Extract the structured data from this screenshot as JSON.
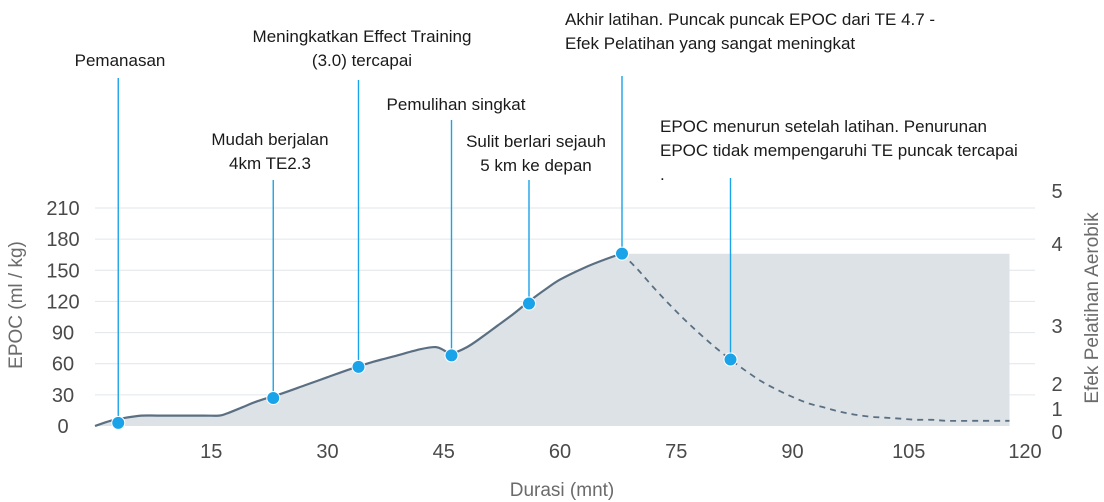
{
  "chart_data": {
    "type": "area",
    "xlabel": "Durasi (mnt)",
    "ylabel": "EPOC (ml / kg)",
    "y2label": "Efek Pelatihan Aerobik",
    "x_ticks": [
      15,
      30,
      45,
      60,
      75,
      90,
      105,
      120
    ],
    "y_ticks": [
      0,
      30,
      60,
      90,
      120,
      150,
      180,
      210
    ],
    "y2_ticks": [
      "0",
      "1",
      "2",
      "3",
      "4",
      "5"
    ],
    "xlim": [
      0,
      120
    ],
    "ylim": [
      0,
      210
    ],
    "colors": {
      "line": "#5b6f82",
      "fill": "#dde2e7",
      "marker": "#1aa3e8",
      "guide": "#1aa3e8"
    },
    "series": [
      {
        "style": "solid",
        "x": [
          0,
          2,
          4,
          6,
          8,
          10,
          14,
          16,
          17,
          19,
          21,
          24,
          27,
          30,
          33,
          36,
          39,
          42,
          44,
          45,
          46,
          48,
          50,
          52,
          54,
          56,
          58,
          60,
          63,
          66,
          68
        ],
        "y": [
          0,
          5,
          8,
          10,
          10,
          10,
          10,
          10,
          12,
          18,
          24,
          31,
          39,
          47,
          55,
          62,
          68,
          74,
          76,
          73,
          70,
          76,
          86,
          97,
          108,
          120,
          131,
          141,
          152,
          161,
          166
        ]
      },
      {
        "style": "dashed",
        "x": [
          68,
          70,
          72,
          74,
          76,
          78,
          80,
          82,
          84,
          86,
          88,
          90,
          92,
          94,
          96,
          98,
          100,
          102,
          104,
          106,
          108,
          110,
          114,
          118
        ],
        "y": [
          166,
          151,
          134,
          118,
          103,
          89,
          76,
          64,
          53,
          43,
          35,
          28,
          22,
          18,
          14,
          11,
          9,
          8,
          7,
          6,
          6,
          5,
          5,
          5
        ]
      }
    ],
    "plateau": {
      "x_start": 68,
      "x_end": 118,
      "y": 166
    },
    "annotations": [
      {
        "x": 3,
        "y": 3,
        "lines": [
          "Pemanasan"
        ]
      },
      {
        "x": 23,
        "y": 27,
        "lines": [
          "Mudah berjalan",
          "4km TE2.3"
        ]
      },
      {
        "x": 34,
        "y": 57,
        "lines": [
          "Meningkatkan Effect Training",
          "(3.0) tercapai"
        ]
      },
      {
        "x": 46,
        "y": 68,
        "lines": [
          "Pemulihan singkat"
        ]
      },
      {
        "x": 56,
        "y": 118,
        "lines": [
          "Sulit berlari sejauh",
          "5 km ke depan"
        ]
      },
      {
        "x": 68,
        "y": 166,
        "lines": [
          "Akhir latihan. Puncak puncak EPOC dari TE 4.7 -",
          "Efek Pelatihan yang sangat meningkat"
        ]
      },
      {
        "x": 82,
        "y": 64,
        "lines": [
          "EPOC menurun setelah latihan. Penurunan",
          "EPOC tidak mempengaruhi TE puncak tercapai",
          "."
        ]
      }
    ]
  }
}
